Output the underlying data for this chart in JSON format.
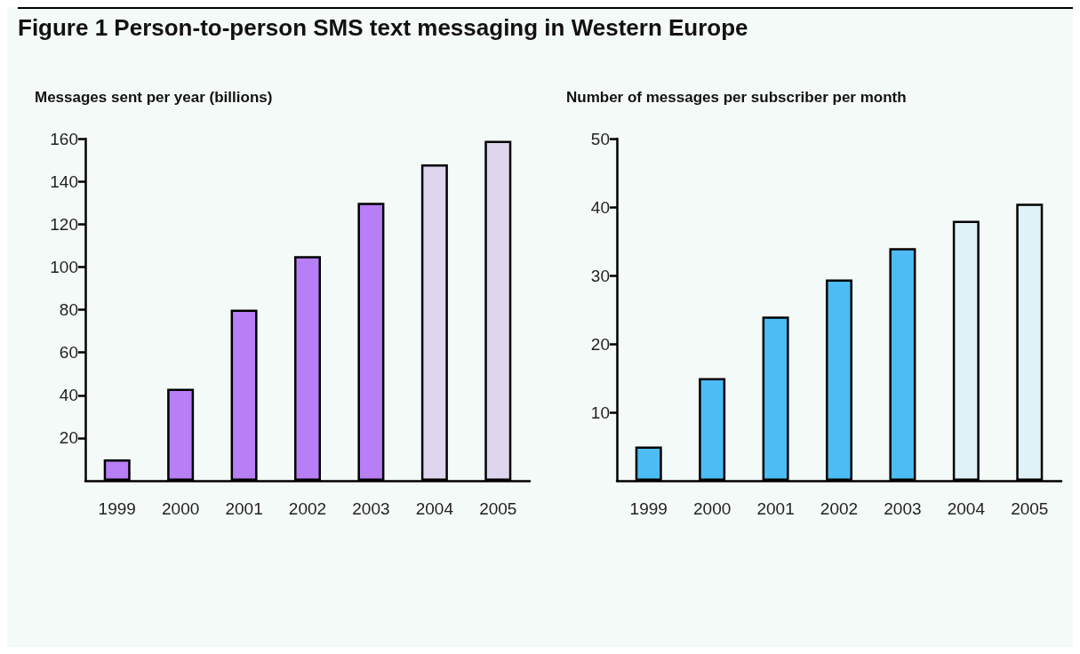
{
  "chart_data": [
    {
      "type": "bar",
      "title": "Figure 1 Person-to-person SMS text messaging in Western Europe",
      "ylabel": "Messages sent per year (billions)",
      "categories": [
        "1999",
        "2000",
        "2001",
        "2002",
        "2003",
        "2004",
        "2005"
      ],
      "values": [
        10,
        43,
        80,
        105,
        130,
        148,
        159
      ],
      "colors": [
        "#b77ef5",
        "#b77ef5",
        "#b77ef5",
        "#b77ef5",
        "#b77ef5",
        "#dfd5ee",
        "#dfd5ee"
      ],
      "ylim": [
        0,
        160
      ],
      "yticks": [
        20,
        40,
        60,
        80,
        100,
        120,
        140,
        160
      ]
    },
    {
      "type": "bar",
      "ylabel": "Number of messages per subscriber per month",
      "categories": [
        "1999",
        "2000",
        "2001",
        "2002",
        "2003",
        "2004",
        "2005"
      ],
      "values": [
        5,
        15,
        24,
        29.4,
        34,
        38,
        40.5
      ],
      "colors": [
        "#4dbcf5",
        "#4dbcf5",
        "#4dbcf5",
        "#4dbcf5",
        "#4dbcf5",
        "#def2f8",
        "#def2f8"
      ],
      "ylim": [
        0,
        50
      ],
      "yticks": [
        10,
        20,
        30,
        40,
        50
      ]
    }
  ]
}
